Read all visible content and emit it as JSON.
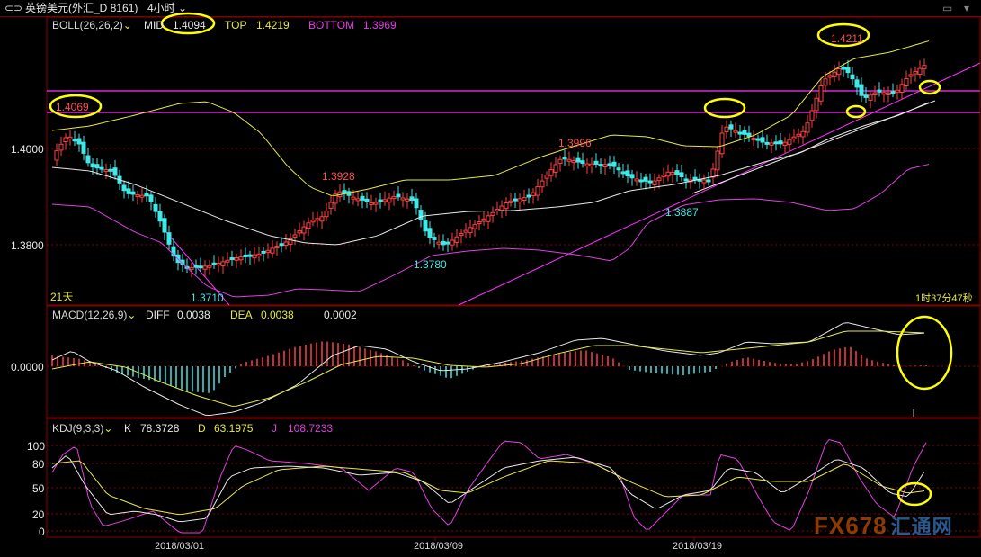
{
  "header": {
    "nav_icon": "back-forward-icon",
    "symbol": "英镑美元(外汇_D 8161)",
    "timeframe": "4小时",
    "top_right_icon": "pin-icon",
    "right_icon": "menu-icon"
  },
  "boll": {
    "name": "BOLL(26,26,2)",
    "mid_label": "MID",
    "mid_value": "1.4094",
    "top_label": "TOP",
    "top_value": "1.4219",
    "bottom_label": "BOTTOM",
    "bottom_value": "1.3969"
  },
  "price_axis": [
    "1.4000",
    "1.3800"
  ],
  "price_annotations": {
    "a1": "1.4069",
    "a2": "1.3710",
    "a3": "1.3928",
    "a4": "1.3780",
    "a5": "1.3996",
    "a6": "1.3887",
    "a7": "1.4211"
  },
  "period_label": "21天",
  "timer_label": "1时37分47秒",
  "macd": {
    "name": "MACD(12,26,9)",
    "diff_label": "DIFF",
    "diff_value": "0.0038",
    "dea_label": "DEA",
    "dea_value": "0.0038",
    "macd_value": "0.0002",
    "axis": [
      "0.0000"
    ]
  },
  "kdj": {
    "name": "KDJ(9,3,3)",
    "k_label": "K",
    "k_value": "78.3728",
    "d_label": "D",
    "d_value": "63.1975",
    "j_label": "J",
    "j_value": "108.7233",
    "axis": [
      "100",
      "80",
      "50",
      "20",
      "0"
    ]
  },
  "x_axis": [
    "2018/03/01",
    "2018/03/09",
    "2018/03/19"
  ],
  "watermark": {
    "brand": "FX678",
    "brand_cn": "汇通网"
  },
  "colors": {
    "up": "#ff4040",
    "down": "#40e8e8",
    "mid": "#e8e8e8",
    "upper": "#e8e840",
    "lower": "#e040e0",
    "highlight": "#ffff00",
    "magenta_line": "#ff30ff",
    "grid": "#8a0000"
  }
}
